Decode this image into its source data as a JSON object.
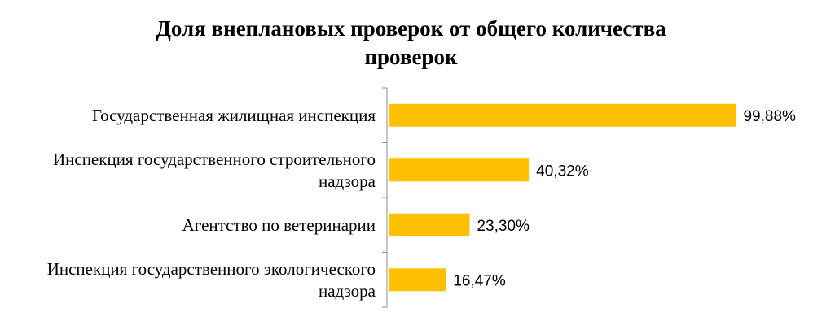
{
  "chart_data": {
    "type": "bar",
    "orientation": "horizontal",
    "title_lines": [
      "Доля внеплановых проверок от общего количества",
      "проверок"
    ],
    "categories": [
      [
        "Государственная жилищная инспекция"
      ],
      [
        "Инспекция государственного строительного",
        "надзора"
      ],
      [
        "Агентство по ветеринарии"
      ],
      [
        "Инспекция государственного экологического",
        "надзора"
      ]
    ],
    "values": [
      99.88,
      40.32,
      23.3,
      16.47
    ],
    "value_labels": [
      "99,88%",
      "40,32%",
      "23,30%",
      "16,47%"
    ],
    "xlim": [
      0,
      100
    ],
    "grid": false,
    "legend": "none",
    "colors": {
      "bar": "#FFC000",
      "axis": "#8C8C8C",
      "text": "#000000"
    }
  }
}
